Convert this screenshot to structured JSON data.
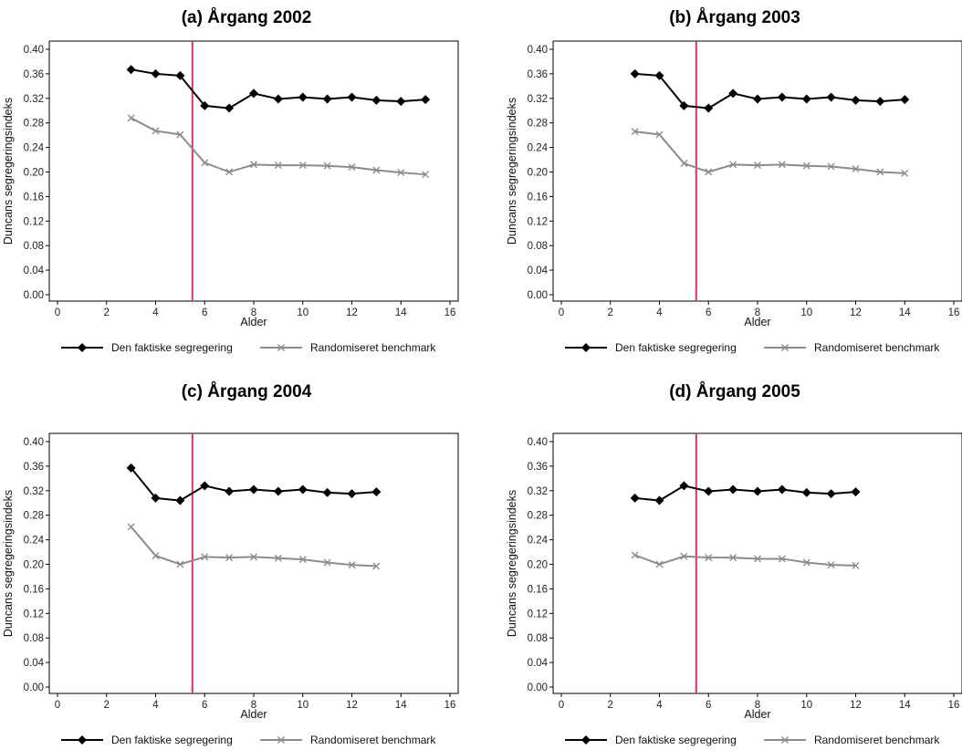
{
  "chart_data": [
    {
      "type": "line",
      "title": "(a) Årgang 2002",
      "xlabel": "Alder",
      "ylabel": "Duncans segregeringsindeks",
      "xlim": [
        0,
        16
      ],
      "ylim": [
        0,
        0.4
      ],
      "xticks": [
        0,
        2,
        4,
        6,
        8,
        10,
        12,
        14,
        16
      ],
      "yticks": [
        "0.00",
        "0.04",
        "0.08",
        "0.12",
        "0.16",
        "0.20",
        "0.24",
        "0.28",
        "0.32",
        "0.36",
        "0.40"
      ],
      "reference_line_x": 5.5,
      "reference_line_color": "#d6336c",
      "grid": false,
      "legend_position": "bottom",
      "series": [
        {
          "name": "Den faktiske segregering",
          "color": "#000000",
          "marker": "diamond",
          "x": [
            3,
            4,
            5,
            6,
            7,
            8,
            9,
            10,
            11,
            12,
            13,
            14,
            15
          ],
          "values": [
            0.367,
            0.36,
            0.357,
            0.308,
            0.304,
            0.328,
            0.319,
            0.322,
            0.319,
            0.322,
            0.317,
            0.315,
            0.318
          ]
        },
        {
          "name": "Randomiseret benchmark",
          "color": "#8c8c8c",
          "marker": "x",
          "x": [
            3,
            4,
            5,
            6,
            7,
            8,
            9,
            10,
            11,
            12,
            13,
            14,
            15
          ],
          "values": [
            0.288,
            0.267,
            0.261,
            0.215,
            0.2,
            0.212,
            0.211,
            0.211,
            0.21,
            0.208,
            0.203,
            0.199,
            0.196
          ]
        }
      ]
    },
    {
      "type": "line",
      "title": "(b) Årgang 2003",
      "xlabel": "Alder",
      "ylabel": "Duncans segregeringsindeks",
      "xlim": [
        0,
        16
      ],
      "ylim": [
        0,
        0.4
      ],
      "xticks": [
        0,
        2,
        4,
        6,
        8,
        10,
        12,
        14,
        16
      ],
      "yticks": [
        "0.00",
        "0.04",
        "0.08",
        "0.12",
        "0.16",
        "0.20",
        "0.24",
        "0.28",
        "0.32",
        "0.36",
        "0.40"
      ],
      "reference_line_x": 5.5,
      "reference_line_color": "#d6336c",
      "grid": false,
      "legend_position": "bottom",
      "series": [
        {
          "name": "Den faktiske segregering",
          "color": "#000000",
          "marker": "diamond",
          "x": [
            3,
            4,
            5,
            6,
            7,
            8,
            9,
            10,
            11,
            12,
            13,
            14
          ],
          "values": [
            0.36,
            0.357,
            0.308,
            0.304,
            0.328,
            0.319,
            0.322,
            0.319,
            0.322,
            0.317,
            0.315,
            0.318
          ]
        },
        {
          "name": "Randomiseret benchmark",
          "color": "#8c8c8c",
          "marker": "x",
          "x": [
            3,
            4,
            5,
            6,
            7,
            8,
            9,
            10,
            11,
            12,
            13,
            14
          ],
          "values": [
            0.266,
            0.261,
            0.214,
            0.2,
            0.212,
            0.211,
            0.212,
            0.21,
            0.209,
            0.205,
            0.2,
            0.198
          ]
        }
      ]
    },
    {
      "type": "line",
      "title": "(c) Årgang 2004",
      "xlabel": "Alder",
      "ylabel": "Duncans segregeringsindeks",
      "xlim": [
        0,
        16
      ],
      "ylim": [
        0,
        0.4
      ],
      "xticks": [
        0,
        2,
        4,
        6,
        8,
        10,
        12,
        14,
        16
      ],
      "yticks": [
        "0.00",
        "0.04",
        "0.08",
        "0.12",
        "0.16",
        "0.20",
        "0.24",
        "0.28",
        "0.32",
        "0.36",
        "0.40"
      ],
      "reference_line_x": 5.5,
      "reference_line_color": "#d6336c",
      "grid": false,
      "legend_position": "bottom",
      "series": [
        {
          "name": "Den faktiske segregering",
          "color": "#000000",
          "marker": "diamond",
          "x": [
            3,
            4,
            5,
            6,
            7,
            8,
            9,
            10,
            11,
            12,
            13
          ],
          "values": [
            0.357,
            0.308,
            0.304,
            0.328,
            0.319,
            0.322,
            0.319,
            0.322,
            0.317,
            0.315,
            0.318
          ]
        },
        {
          "name": "Randomiseret benchmark",
          "color": "#8c8c8c",
          "marker": "x",
          "x": [
            3,
            4,
            5,
            6,
            7,
            8,
            9,
            10,
            11,
            12,
            13
          ],
          "values": [
            0.261,
            0.214,
            0.2,
            0.212,
            0.211,
            0.212,
            0.21,
            0.208,
            0.203,
            0.199,
            0.197
          ]
        }
      ]
    },
    {
      "type": "line",
      "title": "(d) Årgang 2005",
      "xlabel": "Alder",
      "ylabel": "Duncans segregeringsindeks",
      "xlim": [
        0,
        16
      ],
      "ylim": [
        0,
        0.4
      ],
      "xticks": [
        0,
        2,
        4,
        6,
        8,
        10,
        12,
        14,
        16
      ],
      "yticks": [
        "0.00",
        "0.04",
        "0.08",
        "0.12",
        "0.16",
        "0.20",
        "0.24",
        "0.28",
        "0.32",
        "0.36",
        "0.40"
      ],
      "reference_line_x": 5.5,
      "reference_line_color": "#d6336c",
      "grid": false,
      "legend_position": "bottom",
      "series": [
        {
          "name": "Den faktiske segregering",
          "color": "#000000",
          "marker": "diamond",
          "x": [
            3,
            4,
            5,
            6,
            7,
            8,
            9,
            10,
            11,
            12
          ],
          "values": [
            0.308,
            0.304,
            0.328,
            0.319,
            0.322,
            0.319,
            0.322,
            0.317,
            0.315,
            0.318
          ]
        },
        {
          "name": "Randomiseret benchmark",
          "color": "#8c8c8c",
          "marker": "x",
          "x": [
            3,
            4,
            5,
            6,
            7,
            8,
            9,
            10,
            11,
            12
          ],
          "values": [
            0.215,
            0.2,
            0.213,
            0.211,
            0.211,
            0.209,
            0.209,
            0.203,
            0.199,
            0.198
          ]
        }
      ]
    }
  ]
}
